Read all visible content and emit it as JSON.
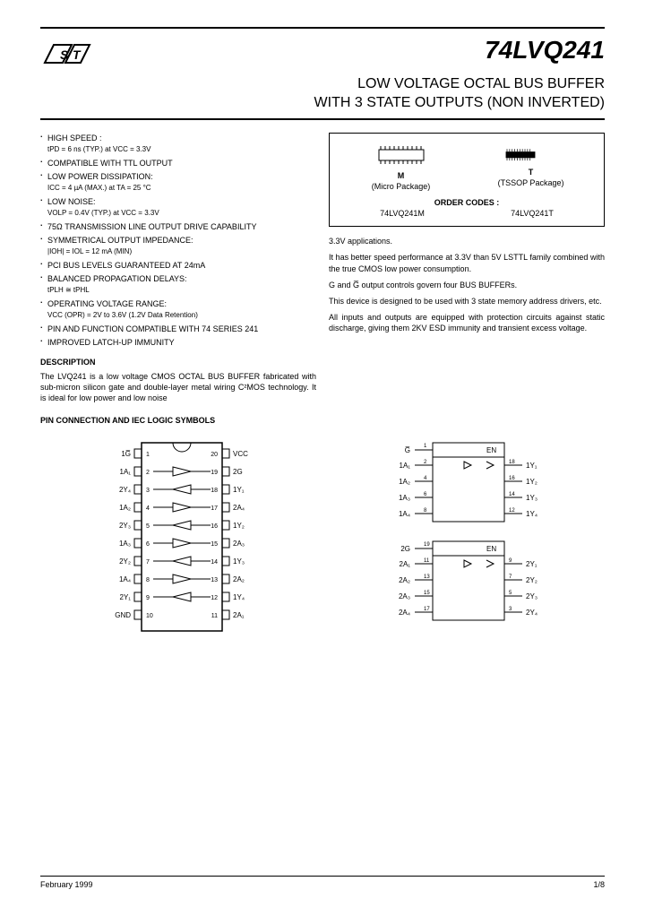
{
  "header": {
    "part_number": "74LVQ241",
    "title_line1": "LOW VOLTAGE OCTAL BUS BUFFER",
    "title_line2": "WITH 3 STATE OUTPUTS (NON INVERTED)"
  },
  "features": [
    {
      "main": "HIGH SPEED :",
      "sub": "tPD = 6 ns (TYP.) at VCC = 3.3V"
    },
    {
      "main": "COMPATIBLE WITH TTL OUTPUT",
      "sub": ""
    },
    {
      "main": "LOW POWER DISSIPATION:",
      "sub": "ICC = 4 µA (MAX.) at TA = 25 °C"
    },
    {
      "main": "LOW NOISE:",
      "sub": "VOLP = 0.4V (TYP.) at VCC = 3.3V"
    },
    {
      "main": "75Ω TRANSMISSION LINE OUTPUT DRIVE CAPABILITY",
      "sub": ""
    },
    {
      "main": "SYMMETRICAL OUTPUT IMPEDANCE:",
      "sub": "|IOH| = IOL = 12 mA (MIN)"
    },
    {
      "main": "PCI BUS LEVELS GUARANTEED AT 24mA",
      "sub": ""
    },
    {
      "main": "BALANCED PROPAGATION DELAYS:",
      "sub": "tPLH ≅ tPHL"
    },
    {
      "main": "OPERATING VOLTAGE RANGE:",
      "sub": "VCC (OPR) = 2V to 3.6V  (1.2V Data Retention)"
    },
    {
      "main": "PIN AND FUNCTION COMPATIBLE WITH 74  SERIES 241",
      "sub": ""
    },
    {
      "main": "IMPROVED LATCH-UP IMMUNITY",
      "sub": ""
    }
  ],
  "description": {
    "heading": "DESCRIPTION",
    "text": "The LVQ241 is a low voltage CMOS OCTAL BUS BUFFER fabricated with sub-micron silicon gate and double-layer metal wiring C²MOS technology. It is ideal for low power and low noise"
  },
  "order_box": {
    "pkg_m_label": "M",
    "pkg_m_desc": "(Micro Package)",
    "pkg_t_label": "T",
    "pkg_t_desc": "(TSSOP Package)",
    "order_title": "ORDER CODES :",
    "code_m": "74LVQ241M",
    "code_t": "74LVQ241T"
  },
  "right_text": {
    "p1": "3.3V applications.",
    "p2": "It has better speed performance at 3.3V than 5V LSTTL family combined with the true CMOS low power consumption.",
    "p3": "G and G̅ output controls govern four BUS BUFFERs.",
    "p4": "This device is designed to be used with 3 state memory address drivers, etc.",
    "p5": "All inputs and outputs are equipped with protection circuits against static discharge, giving them 2KV ESD immunity and transient excess voltage."
  },
  "pin_section": {
    "heading": "PIN CONNECTION AND IEC LOGIC SYMBOLS"
  },
  "pin_diagram": {
    "left_pins": [
      "1G̅",
      "1A₁",
      "2Y₄",
      "1A₂",
      "2Y₃",
      "1A₃",
      "2Y₂",
      "1A₄",
      "2Y₁",
      "GND"
    ],
    "right_pins": [
      "VCC",
      "2G",
      "1Y₁",
      "2A₄",
      "1Y₂",
      "2A₃",
      "1Y₃",
      "2A₂",
      "1Y₄",
      "2A₁"
    ],
    "left_nums": [
      1,
      2,
      3,
      4,
      5,
      6,
      7,
      8,
      9,
      10
    ],
    "right_nums": [
      20,
      19,
      18,
      17,
      16,
      15,
      14,
      13,
      12,
      11
    ]
  },
  "iec_diagram": {
    "block1": {
      "en_label": "EN",
      "in_pin": "1",
      "inputs": [
        {
          "l": "1A₁",
          "n": "2",
          "r": "1Y₁",
          "rn": "18"
        },
        {
          "l": "1A₂",
          "n": "4",
          "r": "1Y₂",
          "rn": "16"
        },
        {
          "l": "1A₃",
          "n": "6",
          "r": "1Y₃",
          "rn": "14"
        },
        {
          "l": "1A₄",
          "n": "8",
          "r": "1Y₄",
          "rn": "12"
        }
      ],
      "g": "G̅"
    },
    "block2": {
      "en_label": "EN",
      "in_pin": "19",
      "inputs": [
        {
          "l": "2A₁",
          "n": "11",
          "r": "2Y₁",
          "rn": "9"
        },
        {
          "l": "2A₂",
          "n": "13",
          "r": "2Y₂",
          "rn": "7"
        },
        {
          "l": "2A₃",
          "n": "15",
          "r": "2Y₃",
          "rn": "5"
        },
        {
          "l": "2A₄",
          "n": "17",
          "r": "2Y₄",
          "rn": "3"
        }
      ],
      "g": "2G"
    }
  },
  "footer": {
    "date": "February 1999",
    "page": "1/8"
  },
  "colors": {
    "text": "#000000",
    "bg": "#ffffff",
    "rule": "#000000"
  }
}
